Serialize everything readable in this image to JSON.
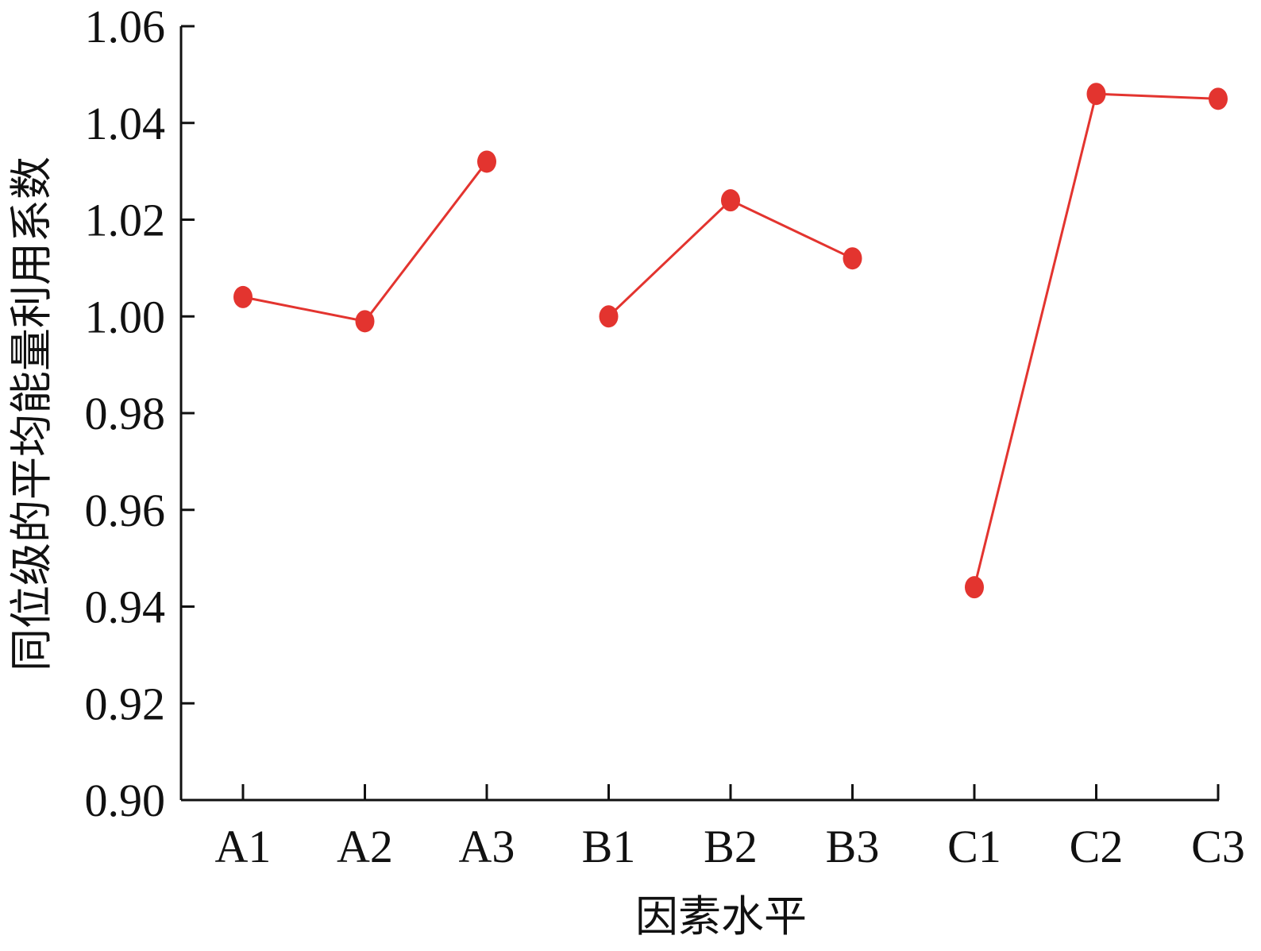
{
  "chart_data": {
    "type": "line",
    "title": "",
    "xlabel": "因素水平",
    "ylabel": "同位级的平均能量利用系数",
    "categories": [
      "A1",
      "A2",
      "A3",
      "B1",
      "B2",
      "B3",
      "C1",
      "C2",
      "C3"
    ],
    "groups": [
      {
        "categories": [
          "A1",
          "A2",
          "A3"
        ],
        "values": [
          1.004,
          0.999,
          1.032
        ]
      },
      {
        "categories": [
          "B1",
          "B2",
          "B3"
        ],
        "values": [
          1.0,
          1.024,
          1.012
        ]
      },
      {
        "categories": [
          "C1",
          "C2",
          "C3"
        ],
        "values": [
          0.944,
          1.046,
          1.045
        ]
      }
    ],
    "ylim": [
      0.9,
      1.06
    ],
    "yticks": [
      "0.90",
      "0.92",
      "0.94",
      "0.96",
      "0.98",
      "1.00",
      "1.02",
      "1.04",
      "1.06"
    ],
    "grid": false,
    "colors": {
      "series": "#e3342f",
      "axis": "#111111"
    }
  }
}
